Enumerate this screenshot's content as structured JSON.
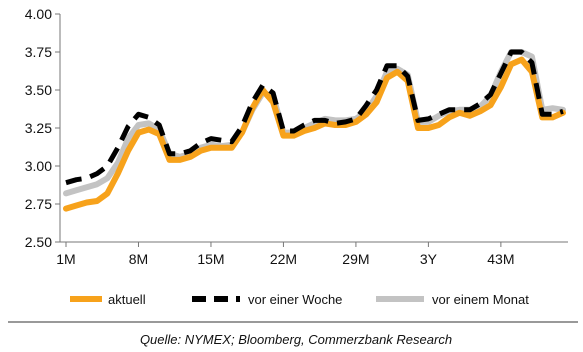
{
  "chart_data": {
    "type": "line",
    "x": [
      1,
      2,
      3,
      4,
      5,
      6,
      7,
      8,
      9,
      10,
      11,
      12,
      13,
      14,
      15,
      16,
      17,
      18,
      19,
      20,
      21,
      22,
      23,
      24,
      25,
      26,
      27,
      28,
      29,
      30,
      31,
      32,
      33,
      34,
      35,
      36,
      37,
      38,
      39,
      40,
      41,
      42,
      43,
      44,
      45,
      46,
      47,
      48,
      49
    ],
    "x_tick_labels": [
      "1M",
      "8M",
      "15M",
      "22M",
      "29M",
      "3Y",
      "43M"
    ],
    "x_tick_positions": [
      1,
      8,
      15,
      22,
      29,
      36,
      43
    ],
    "ylim": [
      2.5,
      4.0
    ],
    "y_ticks": [
      "2.50",
      "2.75",
      "3.00",
      "3.25",
      "3.50",
      "3.75",
      "4.00"
    ],
    "grid": false,
    "legend_position": "bottom",
    "series": [
      {
        "name": "aktuell",
        "color": "#F7A21B",
        "style": "solid",
        "values": [
          2.72,
          2.74,
          2.76,
          2.77,
          2.82,
          2.95,
          3.1,
          3.22,
          3.24,
          3.21,
          3.04,
          3.04,
          3.06,
          3.1,
          3.12,
          3.12,
          3.12,
          3.22,
          3.38,
          3.5,
          3.42,
          3.2,
          3.2,
          3.23,
          3.25,
          3.28,
          3.27,
          3.27,
          3.29,
          3.34,
          3.42,
          3.58,
          3.62,
          3.56,
          3.25,
          3.25,
          3.27,
          3.32,
          3.35,
          3.33,
          3.36,
          3.4,
          3.52,
          3.67,
          3.7,
          3.62,
          3.32,
          3.32,
          3.35
        ]
      },
      {
        "name": "vor einer Woche",
        "color": "#000000",
        "style": "dashed",
        "values": [
          2.89,
          2.91,
          2.92,
          2.95,
          3.0,
          3.12,
          3.26,
          3.34,
          3.32,
          3.27,
          3.08,
          3.08,
          3.1,
          3.15,
          3.18,
          3.17,
          3.16,
          3.26,
          3.42,
          3.53,
          3.48,
          3.23,
          3.23,
          3.27,
          3.3,
          3.3,
          3.28,
          3.29,
          3.31,
          3.4,
          3.5,
          3.66,
          3.66,
          3.59,
          3.3,
          3.31,
          3.34,
          3.37,
          3.37,
          3.37,
          3.41,
          3.47,
          3.61,
          3.75,
          3.75,
          3.68,
          3.34,
          3.34,
          3.36
        ]
      },
      {
        "name": "vor einem Monat",
        "color": "#C3C3C3",
        "style": "solid",
        "values": [
          2.82,
          2.84,
          2.86,
          2.88,
          2.92,
          3.02,
          3.18,
          3.27,
          3.28,
          3.24,
          3.08,
          3.06,
          3.08,
          3.12,
          3.14,
          3.13,
          3.14,
          3.22,
          3.37,
          3.48,
          3.46,
          3.22,
          3.22,
          3.25,
          3.28,
          3.31,
          3.3,
          3.3,
          3.31,
          3.36,
          3.46,
          3.62,
          3.64,
          3.6,
          3.29,
          3.29,
          3.33,
          3.36,
          3.37,
          3.37,
          3.39,
          3.46,
          3.62,
          3.75,
          3.75,
          3.72,
          3.37,
          3.38,
          3.37
        ]
      }
    ],
    "source": "Quelle: NYMEX; Bloomberg, Commerzbank Research"
  }
}
